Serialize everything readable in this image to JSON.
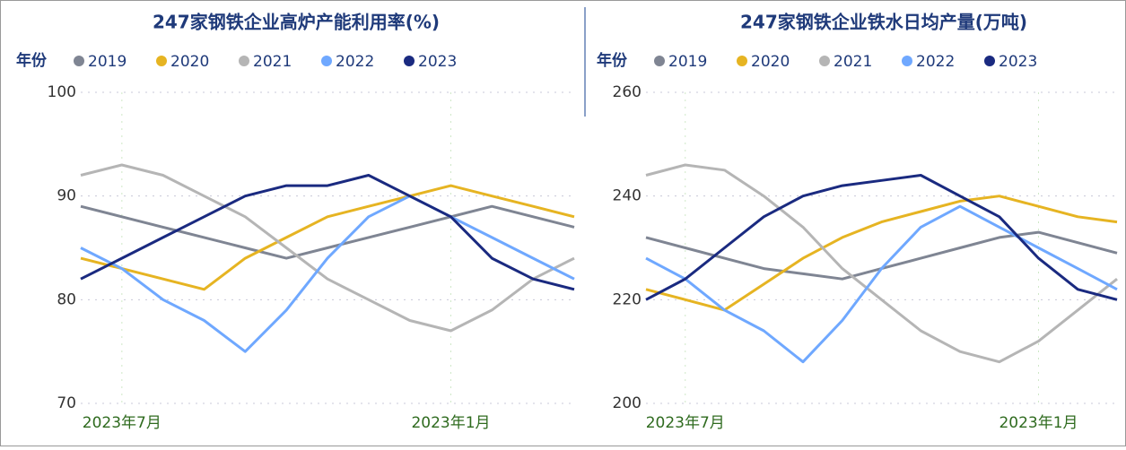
{
  "chart_data": [
    {
      "type": "line",
      "title": "247家钢铁企业高炉产能利用率(%)",
      "legend_title": "年份",
      "categories": [
        null,
        "2023年7月",
        null,
        null,
        null,
        null,
        null,
        null,
        null,
        "2023年1月",
        null,
        null,
        null
      ],
      "series": [
        {
          "name": "2019",
          "color": "#7f8593",
          "values": [
            89,
            88,
            87,
            86,
            85,
            84,
            85,
            86,
            87,
            88,
            89,
            88,
            87
          ]
        },
        {
          "name": "2020",
          "color": "#e6b422",
          "values": [
            84,
            83,
            82,
            81,
            84,
            86,
            88,
            89,
            90,
            91,
            90,
            89,
            88
          ]
        },
        {
          "name": "2021",
          "color": "#b5b5b5",
          "values": [
            92,
            93,
            92,
            90,
            88,
            85,
            82,
            80,
            78,
            77,
            79,
            82,
            84
          ]
        },
        {
          "name": "2022",
          "color": "#6fa8ff",
          "values": [
            85,
            83,
            80,
            78,
            75,
            79,
            84,
            88,
            90,
            88,
            86,
            84,
            82
          ]
        },
        {
          "name": "2023",
          "color": "#1a2a80",
          "values": [
            82,
            84,
            86,
            88,
            90,
            91,
            91,
            92,
            90,
            88,
            84,
            82,
            81
          ]
        }
      ],
      "ylim": [
        70,
        100
      ],
      "yticks": [
        70,
        80,
        90,
        100
      ],
      "grid": true
    },
    {
      "type": "line",
      "title": "247家钢铁企业铁水日均产量(万吨)",
      "legend_title": "年份",
      "categories": [
        null,
        "2023年7月",
        null,
        null,
        null,
        null,
        null,
        null,
        null,
        null,
        "2023年1月",
        null,
        null
      ],
      "series": [
        {
          "name": "2019",
          "color": "#7f8593",
          "values": [
            232,
            230,
            228,
            226,
            225,
            224,
            226,
            228,
            230,
            232,
            233,
            231,
            229
          ]
        },
        {
          "name": "2020",
          "color": "#e6b422",
          "values": [
            222,
            220,
            218,
            223,
            228,
            232,
            235,
            237,
            239,
            240,
            238,
            236,
            235
          ]
        },
        {
          "name": "2021",
          "color": "#b5b5b5",
          "values": [
            244,
            246,
            245,
            240,
            234,
            226,
            220,
            214,
            210,
            208,
            212,
            218,
            224
          ]
        },
        {
          "name": "2022",
          "color": "#6fa8ff",
          "values": [
            228,
            224,
            218,
            214,
            208,
            216,
            226,
            234,
            238,
            234,
            230,
            226,
            222
          ]
        },
        {
          "name": "2023",
          "color": "#1a2a80",
          "values": [
            220,
            224,
            230,
            236,
            240,
            242,
            243,
            244,
            240,
            236,
            228,
            222,
            220
          ]
        }
      ],
      "ylim": [
        200,
        260
      ],
      "yticks": [
        200,
        220,
        240,
        260
      ],
      "grid": true
    }
  ]
}
